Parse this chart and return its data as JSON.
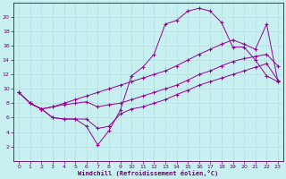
{
  "xlabel": "Windchill (Refroidissement éolien,°C)",
  "bg_color": "#c8f0f0",
  "line_color": "#990099",
  "grid_color": "#b0e0e0",
  "axis_color": "#660066",
  "xlim": [
    -0.5,
    23.5
  ],
  "ylim": [
    0,
    22
  ],
  "xticks": [
    0,
    1,
    2,
    3,
    4,
    5,
    6,
    7,
    8,
    9,
    10,
    11,
    12,
    13,
    14,
    15,
    16,
    17,
    18,
    19,
    20,
    21,
    22,
    23
  ],
  "yticks": [
    2,
    4,
    6,
    8,
    10,
    12,
    14,
    16,
    18,
    20
  ],
  "line1_x": [
    0,
    1,
    2,
    3,
    4,
    5,
    6,
    7,
    8,
    9,
    10,
    11,
    12,
    13,
    14,
    15,
    16,
    17,
    18,
    19,
    20,
    21,
    22,
    23
  ],
  "line1_y": [
    9.5,
    8.0,
    7.2,
    6.0,
    5.8,
    5.8,
    4.8,
    2.2,
    4.2,
    7.0,
    11.8,
    13.0,
    14.8,
    19.0,
    19.5,
    20.8,
    21.2,
    20.8,
    19.2,
    15.8,
    15.8,
    14.0,
    11.8,
    11.0
  ],
  "line2_x": [
    0,
    1,
    2,
    3,
    4,
    5,
    6,
    7,
    8,
    9,
    10,
    11,
    12,
    13,
    14,
    15,
    16,
    17,
    18,
    19,
    20,
    21,
    22,
    23
  ],
  "line2_y": [
    9.5,
    8.0,
    7.2,
    7.5,
    8.0,
    8.5,
    9.0,
    9.5,
    10.0,
    10.5,
    11.0,
    11.5,
    12.0,
    12.5,
    13.2,
    14.0,
    14.8,
    15.5,
    16.2,
    16.8,
    16.2,
    15.5,
    19.0,
    11.0
  ],
  "line3_x": [
    1,
    2,
    3,
    4,
    5,
    6,
    7,
    8,
    9,
    10,
    11,
    12,
    13,
    14,
    15,
    16,
    17,
    18,
    19,
    20,
    21,
    22,
    23
  ],
  "line3_y": [
    8.0,
    7.2,
    7.5,
    7.8,
    8.0,
    8.2,
    7.5,
    7.8,
    8.0,
    8.5,
    9.0,
    9.5,
    10.0,
    10.5,
    11.2,
    12.0,
    12.5,
    13.2,
    13.8,
    14.2,
    14.5,
    14.8,
    13.2
  ],
  "line4_x": [
    0,
    1,
    2,
    3,
    4,
    5,
    6,
    7,
    8,
    9,
    10,
    11,
    12,
    13,
    14,
    15,
    16,
    17,
    18,
    19,
    20,
    21,
    22,
    23
  ],
  "line4_y": [
    9.5,
    8.0,
    7.2,
    6.0,
    5.8,
    5.8,
    5.8,
    4.5,
    4.8,
    6.5,
    7.2,
    7.5,
    8.0,
    8.5,
    9.2,
    9.8,
    10.5,
    11.0,
    11.5,
    12.0,
    12.5,
    13.0,
    13.5,
    11.2
  ]
}
